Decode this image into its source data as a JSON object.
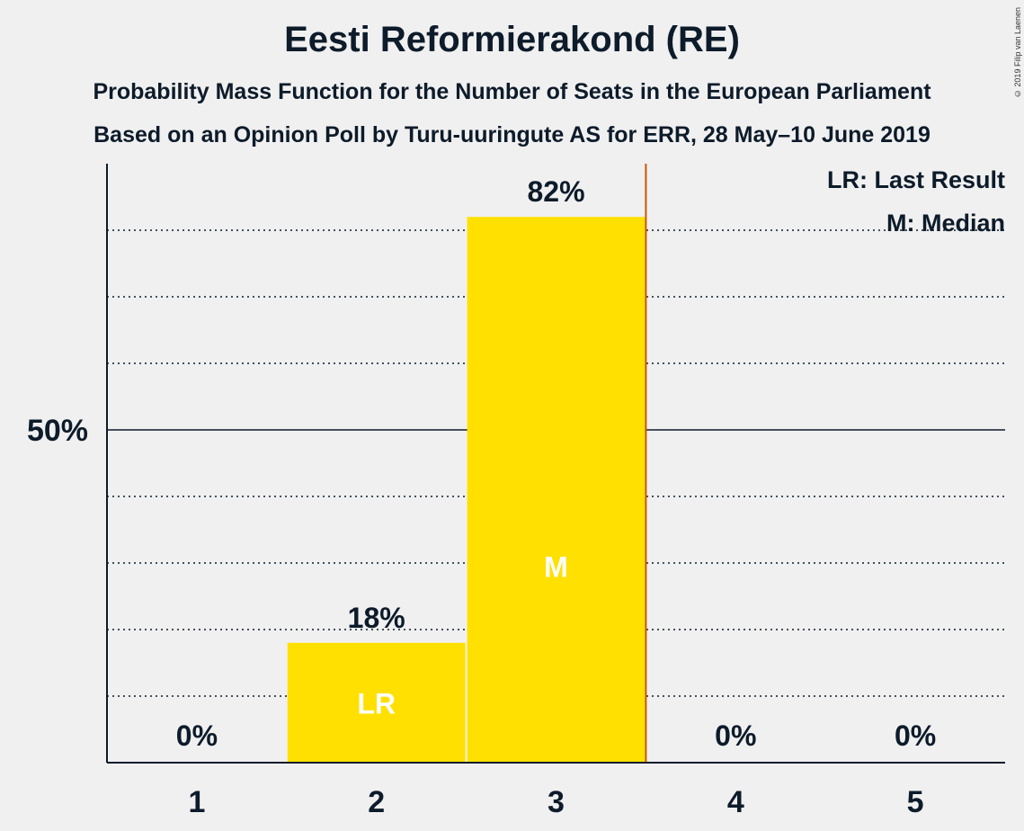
{
  "title": "Eesti Reformierakond (RE)",
  "subtitle_1": "Probability Mass Function for the Number of Seats in the European Parliament",
  "subtitle_2": "Based on an Opinion Poll by Turu-uuringute AS for ERR, 28 May–10 June 2019",
  "copyright": "© 2019 Filip van Laenen",
  "colors": {
    "bar": "#ffe000",
    "median_line": "#cc5500",
    "text": "#0d1b2a",
    "background": "#f0f0f0"
  },
  "chart_data": {
    "type": "bar",
    "categories": [
      "1",
      "2",
      "3",
      "4",
      "5"
    ],
    "values": [
      0,
      18,
      82,
      0,
      0
    ],
    "value_labels": [
      "0%",
      "18%",
      "82%",
      "0%",
      "0%"
    ],
    "bar_markers": [
      "",
      "LR",
      "M",
      "",
      ""
    ],
    "ylim": [
      0,
      90
    ],
    "y_ticks": [
      {
        "value": 50,
        "label": "50%"
      }
    ],
    "grid": true,
    "median_line_after": "3",
    "legend": {
      "position": "top-right",
      "entries": [
        "LR: Last Result",
        "M: Median"
      ]
    }
  }
}
